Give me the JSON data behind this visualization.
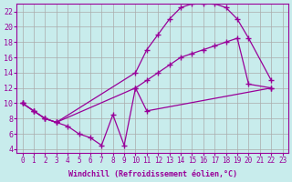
{
  "title": "",
  "xlabel": "Windchill (Refroidissement éolien,°C)",
  "ylabel": "",
  "bg_color": "#c8ecec",
  "line_color": "#990099",
  "grid_color": "#aaaaaa",
  "xlim": [
    -0.5,
    23.5
  ],
  "ylim": [
    3.5,
    23.0
  ],
  "xticks": [
    0,
    1,
    2,
    3,
    4,
    5,
    6,
    7,
    8,
    9,
    10,
    11,
    12,
    13,
    14,
    15,
    16,
    17,
    18,
    19,
    20,
    21,
    22,
    23
  ],
  "yticks": [
    4,
    6,
    8,
    10,
    12,
    14,
    16,
    18,
    20,
    22
  ],
  "curve_high_x": [
    0,
    1,
    2,
    3,
    10,
    11,
    12,
    13,
    14,
    15,
    16,
    17,
    18,
    19,
    20,
    22
  ],
  "curve_high_y": [
    10,
    9,
    8,
    7.5,
    14,
    17,
    19,
    21,
    22.5,
    23,
    23,
    23,
    22.5,
    21,
    18.5,
    13
  ],
  "curve_mid_x": [
    0,
    1,
    2,
    3,
    10,
    11,
    12,
    13,
    14,
    15,
    16,
    17,
    18,
    19,
    20,
    22
  ],
  "curve_mid_y": [
    10,
    9,
    8,
    7.5,
    12,
    13,
    14,
    15,
    16,
    16.5,
    17,
    17.5,
    18,
    18.5,
    12.5,
    12
  ],
  "curve_low_x": [
    0,
    1,
    2,
    3,
    4,
    5,
    6,
    7,
    8,
    9,
    10,
    11,
    22
  ],
  "curve_low_y": [
    10,
    9,
    8,
    7.5,
    7,
    6,
    5.5,
    4.5,
    8.5,
    4.5,
    12,
    9,
    12
  ],
  "marker": "+"
}
